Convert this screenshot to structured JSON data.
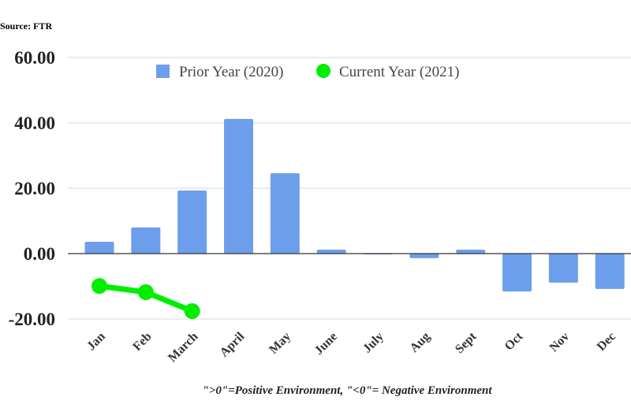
{
  "source": "Source: FTR",
  "footnote": "\">0\"=Positive Environment, \"<0\"= Negative Environment",
  "chart_data": {
    "type": "bar",
    "categories": [
      "Jan",
      "Feb",
      "March",
      "April",
      "May",
      "June",
      "July",
      "Aug",
      "Sept",
      "Oct",
      "Nov",
      "Dec"
    ],
    "series": [
      {
        "name": "Prior Year (2020)",
        "type": "bar",
        "color": "#6d9eeb",
        "values": [
          3.6,
          8.0,
          19.3,
          41.2,
          24.6,
          1.2,
          -0.2,
          -1.4,
          1.2,
          -11.6,
          -8.9,
          -10.8
        ]
      },
      {
        "name": "Current Year (2021)",
        "type": "line",
        "color": "#00ee00",
        "values": [
          -9.9,
          -11.8,
          -17.6,
          null,
          null,
          null,
          null,
          null,
          null,
          null,
          null,
          null
        ]
      }
    ],
    "ylim": [
      -20,
      60
    ],
    "yticks": [
      60,
      40,
      20,
      0,
      -20
    ],
    "ytick_labels": [
      "60.00",
      "40.00",
      "20.00",
      "0.00",
      "-20.00"
    ],
    "grid": true,
    "legend": "top-center"
  }
}
